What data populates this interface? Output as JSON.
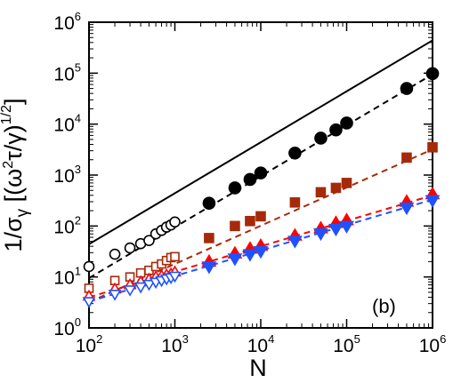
{
  "chart_data": {
    "type": "scatter",
    "panel_label": "(b)",
    "xlabel": "N",
    "ylabel": "1/σ_γ [(ω²τ/γ)^{1/2}]",
    "x_scale": "log",
    "y_scale": "log",
    "xlim": [
      100,
      1000000
    ],
    "ylim": [
      1,
      1000000
    ],
    "x_ticks": [
      {
        "value": 100,
        "base": "10",
        "exp": "2"
      },
      {
        "value": 1000,
        "base": "10",
        "exp": "3"
      },
      {
        "value": 10000,
        "base": "10",
        "exp": "4"
      },
      {
        "value": 100000,
        "base": "10",
        "exp": "5"
      },
      {
        "value": 1000000,
        "base": "10",
        "exp": "6"
      }
    ],
    "y_ticks": [
      {
        "value": 1,
        "base": "10",
        "exp": "0"
      },
      {
        "value": 10,
        "base": "10",
        "exp": "1"
      },
      {
        "value": 100,
        "base": "10",
        "exp": "2"
      },
      {
        "value": 1000,
        "base": "10",
        "exp": "3"
      },
      {
        "value": 10000,
        "base": "10",
        "exp": "4"
      },
      {
        "value": 100000,
        "base": "10",
        "exp": "5"
      },
      {
        "value": 1000000,
        "base": "10",
        "exp": "6"
      }
    ],
    "ref_line": {
      "style": "solid",
      "color": "#000000",
      "x": [
        100,
        1000000
      ],
      "y": [
        44,
        440000
      ]
    },
    "series": [
      {
        "color": "#000000",
        "open_marker": "circle",
        "filled_marker": "circle",
        "fit_line": {
          "x": [
            100,
            1000000
          ],
          "y": [
            9.5,
            95000
          ]
        },
        "open": {
          "x": [
            100,
            200,
            300,
            400,
            500,
            600,
            700,
            800,
            900,
            1000
          ],
          "y": [
            16,
            28,
            37,
            45,
            52,
            70,
            82,
            95,
            105,
            120
          ]
        },
        "filled": {
          "x": [
            2500,
            5000,
            7500,
            10000,
            25000,
            50000,
            75000,
            100000,
            500000,
            1000000
          ],
          "y": [
            280,
            560,
            820,
            1100,
            2700,
            5300,
            7700,
            10500,
            50000,
            98000
          ]
        }
      },
      {
        "color": "#a52a0a",
        "open_marker": "square",
        "filled_marker": "square",
        "fit_line": {
          "x": [
            100,
            1000000
          ],
          "y": [
            3.2,
            3200
          ]
        },
        "open": {
          "x": [
            100,
            200,
            300,
            400,
            500,
            600,
            700,
            800,
            900,
            1000
          ],
          "y": [
            6,
            8.5,
            10,
            12,
            13.5,
            16,
            18,
            21,
            24,
            25
          ]
        },
        "filled": {
          "x": [
            2500,
            5000,
            7500,
            10000,
            25000,
            50000,
            75000,
            100000,
            500000,
            1000000
          ],
          "y": [
            58,
            100,
            125,
            155,
            290,
            460,
            560,
            700,
            2200,
            3500
          ]
        }
      },
      {
        "color": "#ff0000",
        "open_marker": "triangle-up",
        "filled_marker": "triangle-up",
        "fit_line": {
          "x": [
            100,
            1000000
          ],
          "y": [
            4,
            400
          ]
        },
        "open": {
          "x": [
            100,
            200,
            300,
            400,
            500,
            600,
            700,
            800,
            900,
            1000
          ],
          "y": [
            4.2,
            5.8,
            7,
            8,
            9,
            10,
            10.5,
            11,
            11.5,
            12.5
          ]
        },
        "filled": {
          "x": [
            2500,
            5000,
            7500,
            10000,
            25000,
            50000,
            75000,
            100000,
            500000,
            1000000
          ],
          "y": [
            20,
            29,
            36,
            41,
            65,
            90,
            115,
            130,
            300,
            420
          ]
        }
      },
      {
        "color": "#1f52ff",
        "open_marker": "triangle-down",
        "filled_marker": "triangle-down",
        "fit_line": {
          "x": [
            100,
            1000000
          ],
          "y": [
            3.3,
            330
          ]
        },
        "open": {
          "x": [
            100,
            200,
            300,
            400,
            500,
            600,
            700,
            800,
            900,
            1000
          ],
          "y": [
            3.3,
            4.6,
            5.6,
            6.4,
            7.2,
            7.9,
            8.5,
            9.2,
            9.7,
            10.4
          ]
        },
        "filled": {
          "x": [
            2500,
            5000,
            7500,
            10000,
            25000,
            50000,
            75000,
            100000,
            500000,
            1000000
          ],
          "y": [
            16,
            23,
            28,
            32,
            51,
            72,
            88,
            100,
            230,
            320
          ]
        }
      }
    ]
  }
}
